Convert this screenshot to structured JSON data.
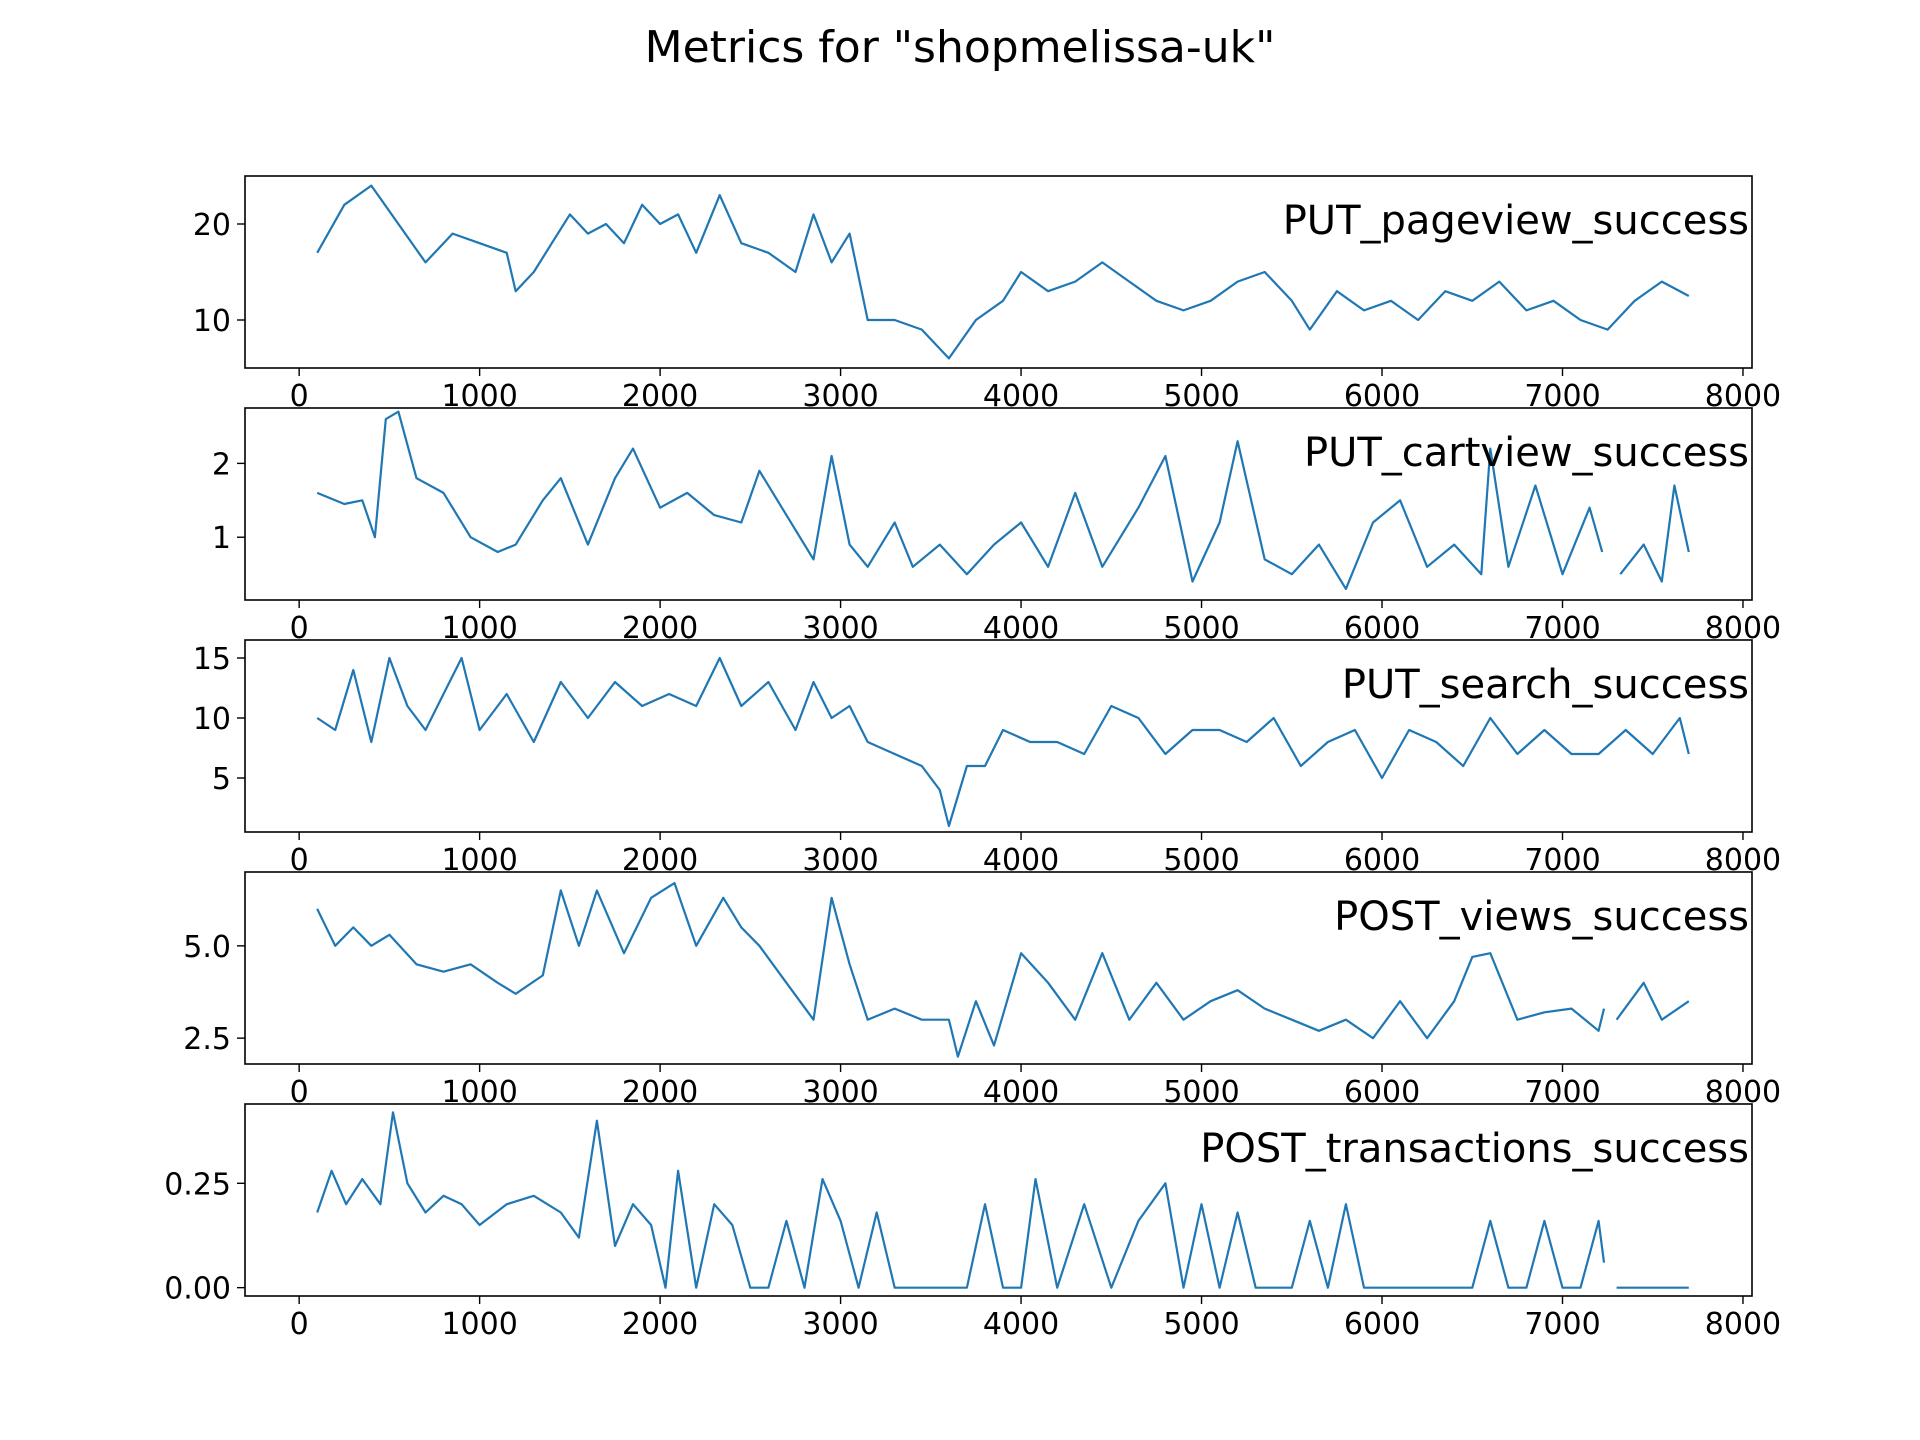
{
  "title": "Metrics for \"shopmelissa-uk\"",
  "colors": {
    "line": "#1f77b4",
    "axis": "#000000"
  },
  "chart_data": [
    {
      "type": "line",
      "title": "PUT_pageview_success",
      "xlabel": "",
      "ylabel": "",
      "x_ticks": [
        0,
        1000,
        2000,
        3000,
        4000,
        5000,
        6000,
        7000,
        8000
      ],
      "y_ticks": [
        10,
        20
      ],
      "y_tick_labels": [
        "10",
        "20"
      ],
      "xlim": [
        -300,
        8050
      ],
      "ylim": [
        5,
        25
      ],
      "grid": false,
      "series": [
        {
          "x": [
            100,
            250,
            400,
            550,
            700,
            850,
            1000,
            1150,
            1200,
            1300,
            1400,
            1500,
            1600,
            1700,
            1800,
            1900,
            2000,
            2100,
            2200,
            2330,
            2450,
            2600,
            2750,
            2850,
            2950,
            3050,
            3150,
            3300,
            3450,
            3600,
            3750,
            3900,
            4000,
            4150,
            4300,
            4450,
            4600,
            4750,
            4900,
            5050,
            5200,
            5350,
            5500,
            5600,
            5750,
            5900,
            6050,
            6200,
            6350,
            6500,
            6650,
            6800,
            6950,
            7100,
            7250,
            7400,
            7550,
            7700
          ],
          "values": [
            17,
            22,
            24,
            20,
            16,
            19,
            18,
            17,
            13,
            15,
            18,
            21,
            19,
            20,
            18,
            22,
            20,
            21,
            17,
            23,
            18,
            17,
            15,
            21,
            16,
            19,
            10,
            10,
            9,
            6,
            10,
            12,
            15,
            13,
            14,
            16,
            14,
            12,
            11,
            12,
            14,
            15,
            12,
            9,
            13,
            11,
            12,
            10,
            13,
            12,
            14,
            11,
            12,
            10,
            9,
            12,
            14,
            12.5
          ]
        }
      ]
    },
    {
      "type": "line",
      "title": "PUT_cartview_success",
      "xlabel": "",
      "ylabel": "",
      "x_ticks": [
        0,
        1000,
        2000,
        3000,
        4000,
        5000,
        6000,
        7000,
        8000
      ],
      "y_ticks": [
        1,
        2
      ],
      "y_tick_labels": [
        "1",
        "2"
      ],
      "xlim": [
        -300,
        8050
      ],
      "ylim": [
        0.15,
        2.75
      ],
      "grid": false,
      "series": [
        {
          "x": [
            100,
            250,
            350,
            420,
            480,
            550,
            650,
            800,
            950,
            1100,
            1200,
            1350,
            1450,
            1600,
            1750,
            1850,
            2000,
            2150,
            2300,
            2450,
            2550,
            2700,
            2850,
            2950,
            3050,
            3150,
            3300,
            3400,
            3550,
            3700,
            3850,
            4000,
            4150,
            4300,
            4450,
            4650,
            4800,
            4950,
            5100,
            5200,
            5350,
            5500,
            5650,
            5800,
            5950,
            6100,
            6250,
            6400,
            6550,
            6600,
            6700,
            6850,
            7000,
            7150,
            7220,
            null,
            7320,
            7450,
            7550,
            7620,
            7700
          ],
          "values": [
            1.6,
            1.45,
            1.5,
            1.0,
            2.6,
            2.7,
            1.8,
            1.6,
            1.0,
            0.8,
            0.9,
            1.5,
            1.8,
            0.9,
            1.8,
            2.2,
            1.4,
            1.6,
            1.3,
            1.2,
            1.9,
            1.3,
            0.7,
            2.1,
            0.9,
            0.6,
            1.2,
            0.6,
            0.9,
            0.5,
            0.9,
            1.2,
            0.6,
            1.6,
            0.6,
            1.4,
            2.1,
            0.4,
            1.2,
            2.3,
            0.7,
            0.5,
            0.9,
            0.3,
            1.2,
            1.5,
            0.6,
            0.9,
            0.5,
            2.2,
            0.6,
            1.7,
            0.5,
            1.4,
            0.8,
            null,
            0.5,
            0.9,
            0.4,
            1.7,
            0.8
          ]
        }
      ]
    },
    {
      "type": "line",
      "title": "PUT_search_success",
      "xlabel": "",
      "ylabel": "",
      "x_ticks": [
        0,
        1000,
        2000,
        3000,
        4000,
        5000,
        6000,
        7000,
        8000
      ],
      "y_ticks": [
        5,
        10,
        15
      ],
      "y_tick_labels": [
        "5",
        "10",
        "15"
      ],
      "xlim": [
        -300,
        8050
      ],
      "ylim": [
        0.5,
        16.5
      ],
      "grid": false,
      "series": [
        {
          "x": [
            100,
            200,
            300,
            400,
            500,
            600,
            700,
            800,
            900,
            1000,
            1150,
            1300,
            1450,
            1600,
            1750,
            1900,
            2050,
            2200,
            2330,
            2450,
            2600,
            2750,
            2850,
            2950,
            3050,
            3150,
            3300,
            3450,
            3550,
            3600,
            3700,
            3800,
            3900,
            4050,
            4200,
            4350,
            4500,
            4650,
            4800,
            4950,
            5100,
            5250,
            5400,
            5550,
            5700,
            5850,
            6000,
            6150,
            6300,
            6450,
            6600,
            6750,
            6900,
            7050,
            7200,
            7350,
            7500,
            7650,
            7700
          ],
          "values": [
            10,
            9,
            14,
            8,
            15,
            11,
            9,
            12,
            15,
            9,
            12,
            8,
            13,
            10,
            13,
            11,
            12,
            11,
            15,
            11,
            13,
            9,
            13,
            10,
            11,
            8,
            7,
            6,
            4,
            1,
            6,
            6,
            9,
            8,
            8,
            7,
            11,
            10,
            7,
            9,
            9,
            8,
            10,
            6,
            8,
            9,
            5,
            9,
            8,
            6,
            10,
            7,
            9,
            7,
            7,
            9,
            7,
            10,
            7
          ]
        }
      ]
    },
    {
      "type": "line",
      "title": "POST_views_success",
      "xlabel": "",
      "ylabel": "",
      "x_ticks": [
        0,
        1000,
        2000,
        3000,
        4000,
        5000,
        6000,
        7000,
        8000
      ],
      "y_ticks": [
        2.5,
        5.0
      ],
      "y_tick_labels": [
        "2.5",
        "5.0"
      ],
      "xlim": [
        -300,
        8050
      ],
      "ylim": [
        1.8,
        7.0
      ],
      "grid": false,
      "series": [
        {
          "x": [
            100,
            200,
            300,
            400,
            500,
            650,
            800,
            950,
            1100,
            1200,
            1350,
            1450,
            1550,
            1650,
            1800,
            1950,
            2080,
            2200,
            2350,
            2450,
            2550,
            2700,
            2850,
            2950,
            3050,
            3150,
            3300,
            3450,
            3600,
            3650,
            3750,
            3850,
            4000,
            4150,
            4300,
            4450,
            4600,
            4750,
            4900,
            5050,
            5200,
            5350,
            5500,
            5650,
            5800,
            5950,
            6100,
            6250,
            6400,
            6500,
            6600,
            6750,
            6900,
            7050,
            7200,
            7230,
            null,
            7300,
            7450,
            7550,
            7700
          ],
          "values": [
            6.0,
            5.0,
            5.5,
            5.0,
            5.3,
            4.5,
            4.3,
            4.5,
            4.0,
            3.7,
            4.2,
            6.5,
            5.0,
            6.5,
            4.8,
            6.3,
            6.7,
            5.0,
            6.3,
            5.5,
            5.0,
            4.0,
            3.0,
            6.3,
            4.5,
            3.0,
            3.3,
            3.0,
            3.0,
            2.0,
            3.5,
            2.3,
            4.8,
            4.0,
            3.0,
            4.8,
            3.0,
            4.0,
            3.0,
            3.5,
            3.8,
            3.3,
            3.0,
            2.7,
            3.0,
            2.5,
            3.5,
            2.5,
            3.5,
            4.7,
            4.8,
            3.0,
            3.2,
            3.3,
            2.7,
            3.3,
            null,
            3.0,
            4.0,
            3.0,
            3.5
          ]
        }
      ]
    },
    {
      "type": "line",
      "title": "POST_transactions_success",
      "xlabel": "",
      "ylabel": "",
      "x_ticks": [
        0,
        1000,
        2000,
        3000,
        4000,
        5000,
        6000,
        7000,
        8000
      ],
      "x_tick_labels": [
        "0",
        "1000",
        "2000",
        "3000",
        "4000",
        "5000",
        "6000",
        "7000",
        "8000"
      ],
      "y_ticks": [
        0.0,
        0.25
      ],
      "y_tick_labels": [
        "0.00",
        "0.25"
      ],
      "xlim": [
        -300,
        8050
      ],
      "ylim": [
        -0.02,
        0.44
      ],
      "grid": false,
      "series": [
        {
          "x": [
            100,
            180,
            260,
            350,
            450,
            520,
            600,
            700,
            800,
            900,
            1000,
            1150,
            1300,
            1450,
            1550,
            1650,
            1750,
            1850,
            1950,
            2030,
            2100,
            2200,
            2300,
            2400,
            2500,
            2600,
            2700,
            2800,
            2900,
            3000,
            3100,
            3200,
            3300,
            3400,
            3500,
            3700,
            3800,
            3900,
            4000,
            4080,
            4200,
            4350,
            4500,
            4650,
            4800,
            4900,
            5000,
            5100,
            5200,
            5300,
            5400,
            5500,
            5600,
            5700,
            5800,
            5900,
            6000,
            6100,
            6200,
            6350,
            6500,
            6600,
            6700,
            6800,
            6900,
            7000,
            7100,
            7200,
            7230,
            null,
            7300,
            7500,
            7700
          ],
          "values": [
            0.18,
            0.28,
            0.2,
            0.26,
            0.2,
            0.42,
            0.25,
            0.18,
            0.22,
            0.2,
            0.15,
            0.2,
            0.22,
            0.18,
            0.12,
            0.4,
            0.1,
            0.2,
            0.15,
            0.0,
            0.28,
            0.0,
            0.2,
            0.15,
            0.0,
            0.0,
            0.16,
            0.0,
            0.26,
            0.16,
            0.0,
            0.18,
            0.0,
            0.0,
            0.0,
            0.0,
            0.2,
            0.0,
            0.0,
            0.26,
            0.0,
            0.2,
            0.0,
            0.16,
            0.25,
            0.0,
            0.2,
            0.0,
            0.18,
            0.0,
            0.0,
            0.0,
            0.16,
            0.0,
            0.2,
            0.0,
            0.0,
            0.0,
            0.0,
            0.0,
            0.0,
            0.16,
            0.0,
            0.0,
            0.16,
            0.0,
            0.0,
            0.16,
            0.06,
            null,
            0.0,
            0.0,
            0.0
          ]
        }
      ]
    }
  ]
}
